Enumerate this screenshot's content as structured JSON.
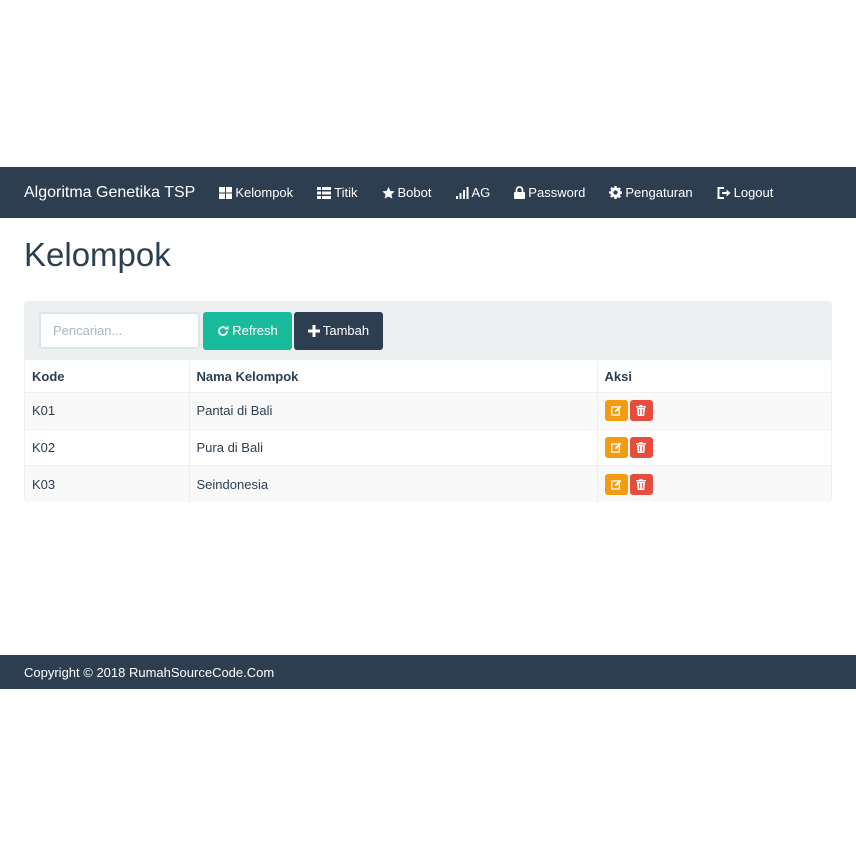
{
  "navbar": {
    "brand": "Algoritma Genetika TSP",
    "items": [
      {
        "label": "Kelompok",
        "icon": "grid-icon"
      },
      {
        "label": "Titik",
        "icon": "list-icon"
      },
      {
        "label": "Bobot",
        "icon": "star-icon"
      },
      {
        "label": "AG",
        "icon": "signal-icon"
      },
      {
        "label": "Password",
        "icon": "lock-icon"
      },
      {
        "label": "Pengaturan",
        "icon": "gear-icon"
      },
      {
        "label": "Logout",
        "icon": "logout-icon"
      }
    ]
  },
  "page": {
    "title": "Kelompok"
  },
  "toolbar": {
    "search_placeholder": "Pencarian...",
    "search_value": "",
    "refresh_label": "Refresh",
    "add_label": "Tambah"
  },
  "table": {
    "headers": [
      "Kode",
      "Nama Kelompok",
      "Aksi"
    ],
    "rows": [
      {
        "kode": "K01",
        "nama": "Pantai di Bali"
      },
      {
        "kode": "K02",
        "nama": "Pura di Bali"
      },
      {
        "kode": "K03",
        "nama": "Seindonesia"
      }
    ]
  },
  "footer": {
    "text": "Copyright © 2018 RumahSourceCode.Com"
  },
  "colors": {
    "primary": "#2c3e50",
    "success": "#18bc9c",
    "warning": "#f39c12",
    "danger": "#e74c3c",
    "light": "#ecf0f1"
  }
}
